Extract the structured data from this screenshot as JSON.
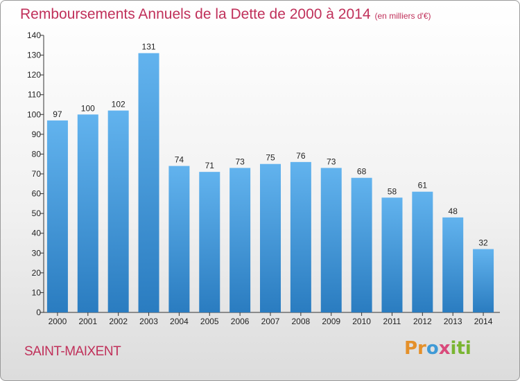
{
  "title": "Remboursements Annuels de la Dette de 2000 à 2014",
  "unit": "(en milliers d'€)",
  "place": "SAINT-MAIXENT",
  "logo": {
    "p1": "Pr",
    "p2": "o",
    "p3": "x",
    "p4": "iti"
  },
  "colors": {
    "bar_top": "#62b3ee",
    "bar_bottom": "#2a7cc0",
    "title": "#c0305a"
  },
  "chart_data": {
    "type": "bar",
    "title": "Remboursements Annuels de la Dette de 2000 à 2014",
    "categories": [
      "2000",
      "2001",
      "2002",
      "2003",
      "2004",
      "2005",
      "2006",
      "2007",
      "2008",
      "2009",
      "2010",
      "2011",
      "2012",
      "2013",
      "2014"
    ],
    "values": [
      97,
      100,
      102,
      131,
      74,
      71,
      73,
      75,
      76,
      73,
      68,
      58,
      61,
      48,
      32
    ],
    "ylim": [
      0,
      140
    ],
    "yticks": [
      0,
      10,
      20,
      30,
      40,
      50,
      60,
      70,
      80,
      90,
      100,
      110,
      120,
      130,
      140
    ],
    "grid": false,
    "xlabel": "",
    "ylabel": ""
  }
}
